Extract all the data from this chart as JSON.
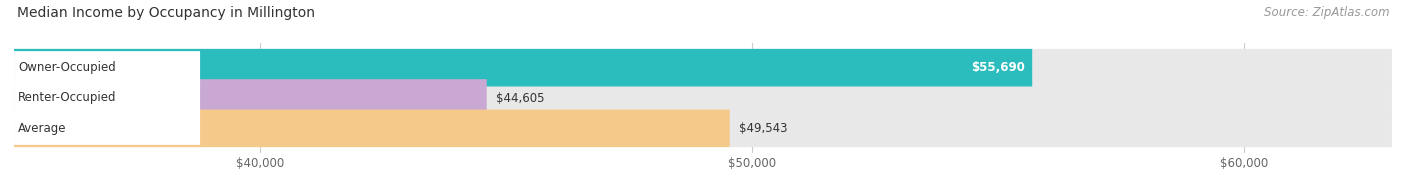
{
  "title": "Median Income by Occupancy in Millington",
  "source": "Source: ZipAtlas.com",
  "categories": [
    "Owner-Occupied",
    "Renter-Occupied",
    "Average"
  ],
  "values": [
    55690,
    44605,
    49543
  ],
  "bar_colors": [
    "#2bbcbe",
    "#c9a8d4",
    "#f5c98a"
  ],
  "value_labels": [
    "$55,690",
    "$44,605",
    "$49,543"
  ],
  "value_label_inside": [
    true,
    false,
    false
  ],
  "xmin": 35000,
  "xmax": 63000,
  "xticks": [
    40000,
    50000,
    60000
  ],
  "xtick_labels": [
    "$40,000",
    "$50,000",
    "$60,000"
  ],
  "title_fontsize": 10,
  "source_fontsize": 8.5,
  "label_fontsize": 8.5,
  "bar_height": 0.62,
  "bar_gap": 0.38,
  "figsize": [
    14.06,
    1.96
  ],
  "dpi": 100,
  "background_color": "#ffffff",
  "bar_bg_color": "#e8e8e8",
  "label_box_color": "#ffffff",
  "grid_color": "#cccccc",
  "text_color": "#333333",
  "source_color": "#999999"
}
